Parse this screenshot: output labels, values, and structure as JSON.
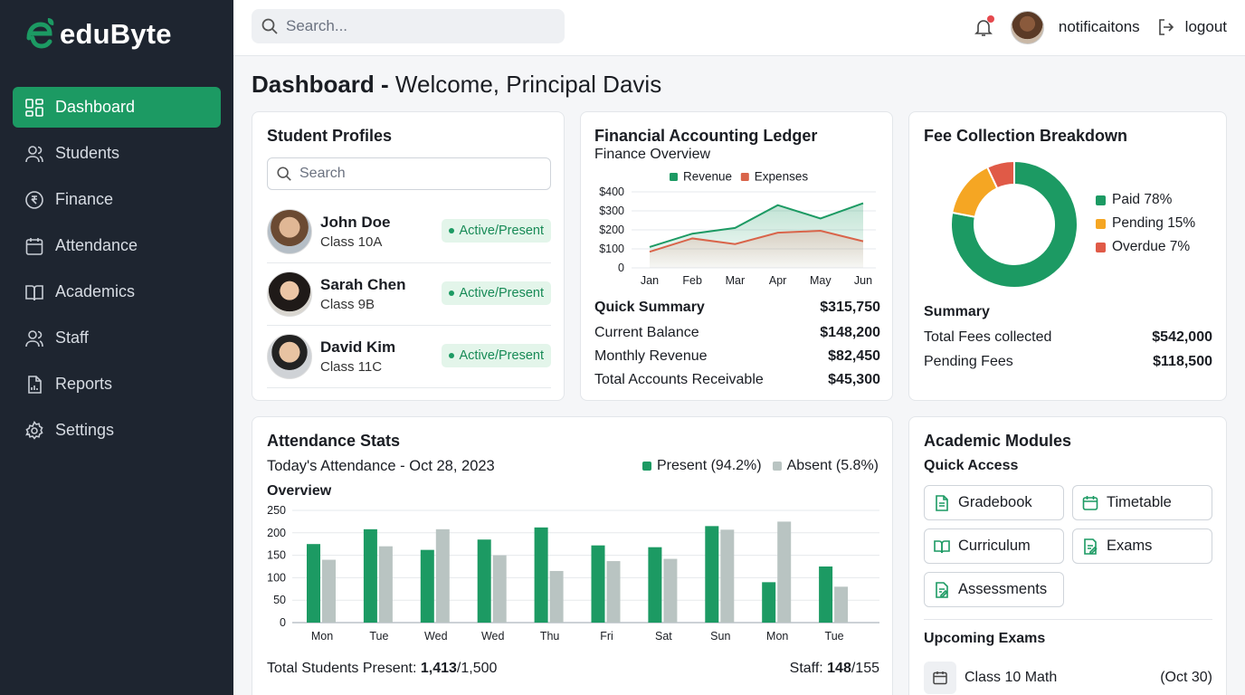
{
  "brand": {
    "name": "eduByte",
    "accent": "#1c9a63"
  },
  "sidebar": {
    "items": [
      {
        "label": "Dashboard",
        "icon": "dashboard-icon",
        "active": true
      },
      {
        "label": "Students",
        "icon": "users-icon"
      },
      {
        "label": "Finance",
        "icon": "rupee-icon"
      },
      {
        "label": "Attendance",
        "icon": "calendar-icon"
      },
      {
        "label": "Academics",
        "icon": "book-icon"
      },
      {
        "label": "Staff",
        "icon": "staff-icon"
      },
      {
        "label": "Reports",
        "icon": "report-icon"
      },
      {
        "label": "Settings",
        "icon": "gear-icon"
      }
    ]
  },
  "topbar": {
    "search_placeholder": "Search...",
    "notifications_label": "notificaitons",
    "logout_label": "logout"
  },
  "page": {
    "title_bold": "Dashboard -",
    "title_rest": " Welcome, Principal Davis"
  },
  "students": {
    "title": "Student Profiles",
    "search_placeholder": "Search",
    "items": [
      {
        "name": "John Doe",
        "class": "Class 10A",
        "status": "Active/Present"
      },
      {
        "name": "Sarah Chen",
        "class": "Class 9B",
        "status": "Active/Present"
      },
      {
        "name": "David Kim",
        "class": "Class 11C",
        "status": "Active/Present"
      }
    ]
  },
  "ledger": {
    "title": "Financial Accounting Ledger",
    "subtitle": "Finance Overview",
    "summary_title": "Quick Summary",
    "summary_total": "$315,750",
    "rows": [
      {
        "label": "Current Balance",
        "value": "$148,200"
      },
      {
        "label": "Monthly Revenue",
        "value": "$82,450"
      },
      {
        "label": "Total Accounts Receivable",
        "value": "$45,300"
      }
    ]
  },
  "fees": {
    "title": "Fee Collection Breakdown",
    "summary_title": "Summary",
    "rows": [
      {
        "label": "Total Fees collected",
        "value": "$542,000"
      },
      {
        "label": "Pending Fees",
        "value": "$118,500"
      }
    ]
  },
  "attendance": {
    "title": "Attendance Stats",
    "date_label": "Today's Attendance - Oct 28, 2023",
    "overview_label": "Overview",
    "students_label": "Total Students Present: ",
    "students_present": "1,413",
    "students_total": "/1,500",
    "staff_label": "Staff: ",
    "staff_present": "148",
    "staff_total": "/155"
  },
  "academics": {
    "title": "Academic Modules",
    "quick_access_title": "Quick Access",
    "modules": [
      {
        "label": "Gradebook",
        "icon": "gradebook-icon"
      },
      {
        "label": "Timetable",
        "icon": "timetable-icon"
      },
      {
        "label": "Curriculum",
        "icon": "curriculum-icon"
      },
      {
        "label": "Exams",
        "icon": "exams-icon"
      },
      {
        "label": "Assessments",
        "icon": "assessments-icon"
      }
    ],
    "upcoming_title": "Upcoming Exams",
    "exams": [
      {
        "name": "Class 10 Math",
        "date": "(Oct 30)"
      }
    ]
  },
  "chart_data": [
    {
      "type": "area",
      "x": [
        "Jan",
        "Feb",
        "Mar",
        "Apr",
        "May",
        "Jun"
      ],
      "series": [
        {
          "name": "Revenue",
          "color": "#1c9a63",
          "values": [
            110,
            180,
            210,
            330,
            260,
            340
          ]
        },
        {
          "name": "Expenses",
          "color": "#d9644a",
          "values": [
            85,
            155,
            125,
            185,
            195,
            140
          ]
        }
      ],
      "yticks": [
        "$400",
        "$300",
        "$200",
        "$100",
        "0"
      ],
      "ylim": [
        0,
        400
      ],
      "legend": "top"
    },
    {
      "type": "pie",
      "slices": [
        {
          "name": "Paid 78%",
          "value": 78,
          "color": "#1c9a63"
        },
        {
          "name": "Pending 15%",
          "value": 15,
          "color": "#f5a623"
        },
        {
          "name": "Overdue 7%",
          "value": 7,
          "color": "#e05a47"
        }
      ],
      "legend": "right"
    },
    {
      "type": "bar",
      "categories": [
        "Mon",
        "Tue",
        "Wed",
        "Wed",
        "Thu",
        "Fri",
        "Sat",
        "Sun",
        "Mon",
        "Tue"
      ],
      "series": [
        {
          "name": "Present (94.2%)",
          "color": "#1c9a63",
          "values": [
            175,
            208,
            162,
            185,
            212,
            172,
            168,
            215,
            90,
            125
          ]
        },
        {
          "name": "Absent (5.8%)",
          "color": "#b9c4c2",
          "values": [
            140,
            170,
            208,
            150,
            115,
            137,
            142,
            207,
            225,
            80
          ]
        }
      ],
      "yticks": [
        "250",
        "200",
        "150",
        "100",
        "50",
        "0"
      ],
      "ylim": [
        0,
        250
      ],
      "legend": "top-right"
    }
  ]
}
